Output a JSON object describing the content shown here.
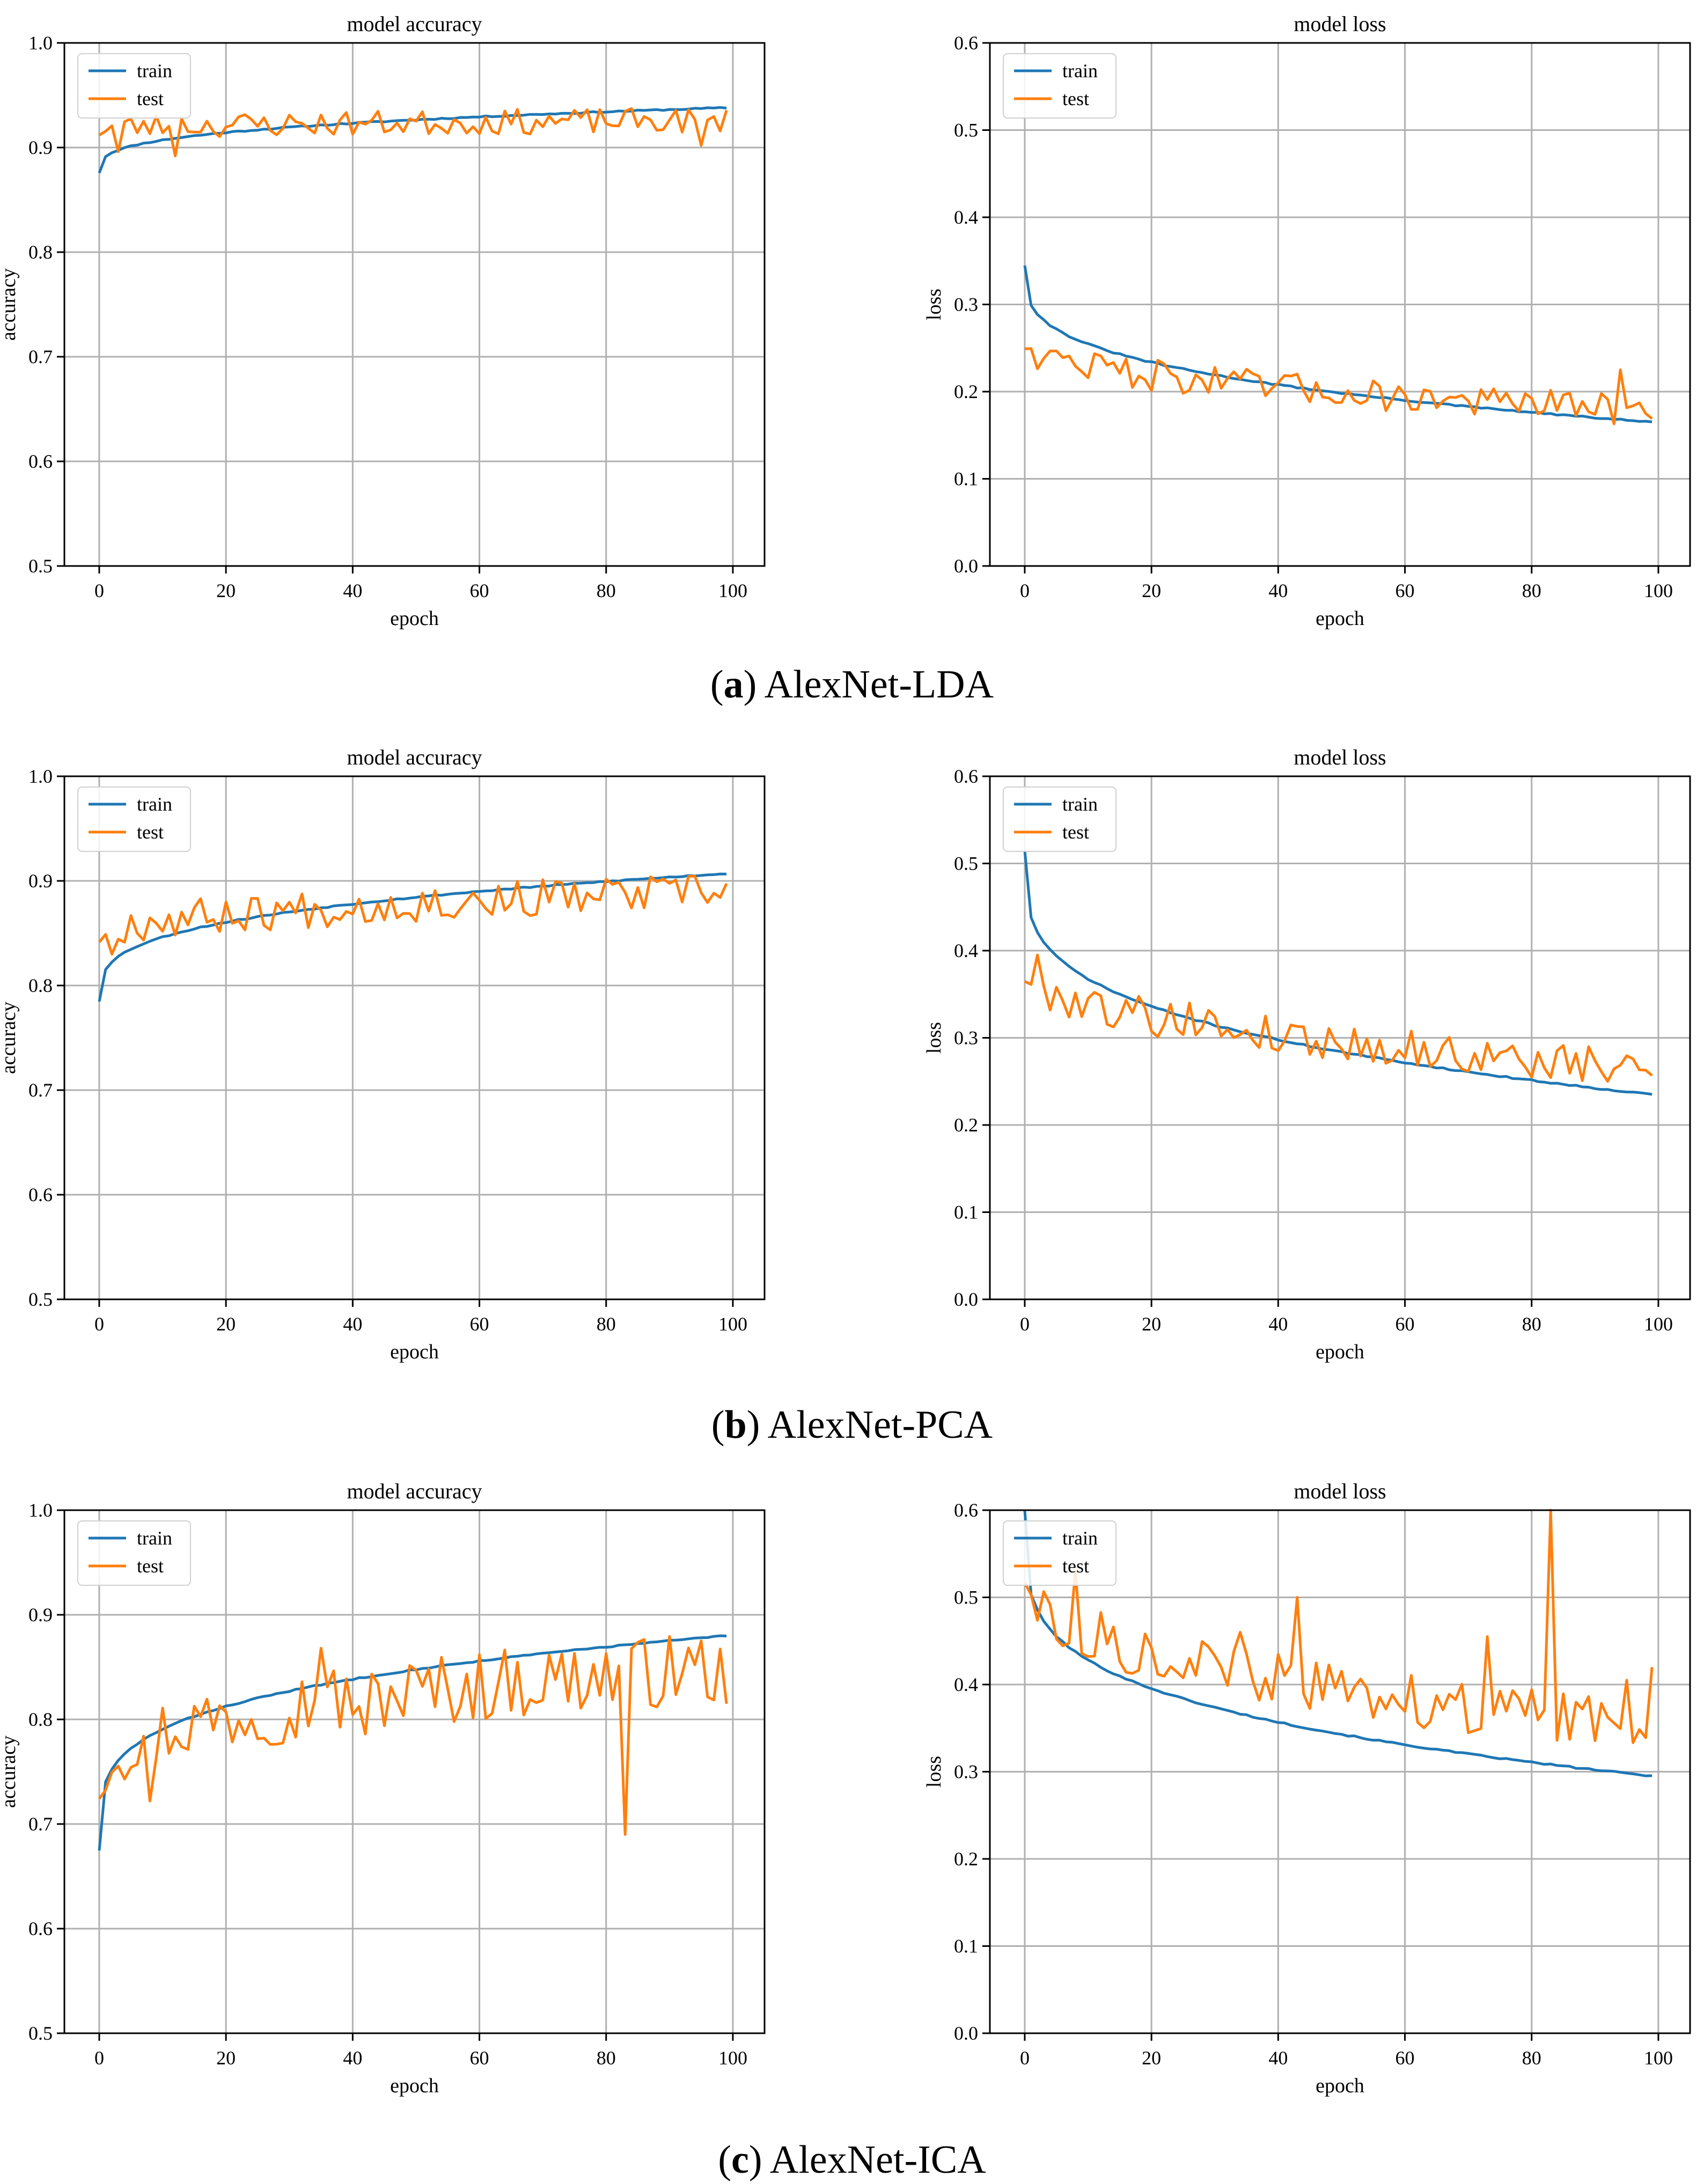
{
  "colors": {
    "train": "#1f77b4",
    "test": "#ff7f0e",
    "grid": "#b0b0b0",
    "axis": "#000000"
  },
  "captions": [
    {
      "letter": "a",
      "text": ") AlexNet-LDA",
      "open": "("
    },
    {
      "letter": "b",
      "text": ") AlexNet-PCA",
      "open": "("
    },
    {
      "letter": "c",
      "text": ") AlexNet-ICA",
      "open": "("
    }
  ],
  "chart_data": [
    {
      "type": "line",
      "title": "model accuracy",
      "xlabel": "epoch",
      "ylabel": "accuracy",
      "xlim": [
        0,
        100
      ],
      "ylim": [
        0.5,
        1.0
      ],
      "xticks": [
        "0",
        "20",
        "40",
        "60",
        "80",
        "100"
      ],
      "yticks": [
        "0.5",
        "0.6",
        "0.7",
        "0.8",
        "0.9",
        "1.0"
      ],
      "grid": true,
      "legend_position": "top-left",
      "series": [
        {
          "name": "train",
          "color": "#1f77b4",
          "shape": "sat",
          "start": 0.876,
          "end": 0.938,
          "power": 0.3,
          "noise": 0.0006,
          "seed": 11,
          "spikes": []
        },
        {
          "name": "test",
          "color": "#ff7f0e",
          "shape": "sat",
          "start": 0.918,
          "end": 0.926,
          "power": 0.5,
          "noise": 0.012,
          "seed": 23,
          "spikes": [
            [
              3,
              0.896
            ],
            [
              12,
              0.892
            ],
            [
              95,
              0.902
            ]
          ]
        }
      ]
    },
    {
      "type": "line",
      "title": "model loss",
      "xlabel": "epoch",
      "ylabel": "loss",
      "xlim": [
        0,
        100
      ],
      "ylim": [
        0.0,
        0.6
      ],
      "xticks": [
        "0",
        "20",
        "40",
        "60",
        "80",
        "100"
      ],
      "yticks": [
        "0.0",
        "0.1",
        "0.2",
        "0.3",
        "0.4",
        "0.5",
        "0.6"
      ],
      "grid": true,
      "legend_position": "top-left",
      "series": [
        {
          "name": "train",
          "color": "#1f77b4",
          "shape": "sat",
          "start": 0.345,
          "end": 0.165,
          "power": 0.3,
          "noise": 0.0008,
          "seed": 31,
          "spikes": []
        },
        {
          "name": "test",
          "color": "#ff7f0e",
          "shape": "sat",
          "start": 0.258,
          "end": 0.178,
          "power": 0.45,
          "noise": 0.018,
          "seed": 47,
          "spikes": [
            [
              12,
              0.241
            ],
            [
              94,
              0.225
            ]
          ]
        }
      ]
    },
    {
      "type": "line",
      "title": "model accuracy",
      "xlabel": "epoch",
      "ylabel": "accuracy",
      "xlim": [
        0,
        100
      ],
      "ylim": [
        0.5,
        1.0
      ],
      "xticks": [
        "0",
        "20",
        "40",
        "60",
        "80",
        "100"
      ],
      "yticks": [
        "0.5",
        "0.6",
        "0.7",
        "0.8",
        "0.9",
        "1.0"
      ],
      "grid": true,
      "legend_position": "top-left",
      "series": [
        {
          "name": "train",
          "color": "#1f77b4",
          "shape": "sat",
          "start": 0.785,
          "end": 0.907,
          "power": 0.3,
          "noise": 0.0006,
          "seed": 53,
          "spikes": []
        },
        {
          "name": "test",
          "color": "#ff7f0e",
          "shape": "sat",
          "start": 0.85,
          "end": 0.89,
          "power": 0.5,
          "noise": 0.018,
          "seed": 67,
          "spikes": [
            [
              2,
              0.83
            ]
          ]
        }
      ]
    },
    {
      "type": "line",
      "title": "model loss",
      "xlabel": "epoch",
      "ylabel": "loss",
      "xlim": [
        0,
        100
      ],
      "ylim": [
        0.0,
        0.6
      ],
      "xticks": [
        "0",
        "20",
        "40",
        "60",
        "80",
        "100"
      ],
      "yticks": [
        "0.0",
        "0.1",
        "0.2",
        "0.3",
        "0.4",
        "0.5",
        "0.6"
      ],
      "grid": true,
      "legend_position": "top-left",
      "series": [
        {
          "name": "train",
          "color": "#1f77b4",
          "shape": "sat",
          "start": 0.515,
          "end": 0.235,
          "power": 0.28,
          "noise": 0.0008,
          "seed": 71,
          "spikes": []
        },
        {
          "name": "test",
          "color": "#ff7f0e",
          "shape": "sat",
          "start": 0.375,
          "end": 0.262,
          "power": 0.5,
          "noise": 0.022,
          "seed": 79,
          "spikes": [
            [
              2,
              0.395
            ],
            [
              26,
              0.34
            ]
          ]
        }
      ]
    },
    {
      "type": "line",
      "title": "model accuracy",
      "xlabel": "epoch",
      "ylabel": "accuracy",
      "xlim": [
        0,
        100
      ],
      "ylim": [
        0.5,
        1.0
      ],
      "xticks": [
        "0",
        "20",
        "40",
        "60",
        "80",
        "100"
      ],
      "yticks": [
        "0.5",
        "0.6",
        "0.7",
        "0.8",
        "0.9",
        "1.0"
      ],
      "grid": true,
      "legend_position": "top-left",
      "series": [
        {
          "name": "train",
          "color": "#1f77b4",
          "shape": "sat",
          "start": 0.675,
          "end": 0.88,
          "power": 0.25,
          "noise": 0.0006,
          "seed": 83,
          "spikes": []
        },
        {
          "name": "test",
          "color": "#ff7f0e",
          "shape": "sat",
          "start": 0.74,
          "end": 0.85,
          "power": 0.35,
          "noise": 0.035,
          "seed": 97,
          "spikes": [
            [
              8,
              0.722
            ],
            [
              35,
              0.868
            ],
            [
              42,
              0.786
            ],
            [
              83,
              0.69
            ],
            [
              99,
              0.815
            ]
          ]
        }
      ]
    },
    {
      "type": "line",
      "title": "model loss",
      "xlabel": "epoch",
      "ylabel": "loss",
      "xlim": [
        0,
        100
      ],
      "ylim": [
        0.0,
        0.6
      ],
      "xticks": [
        "0",
        "20",
        "40",
        "60",
        "80",
        "100"
      ],
      "yticks": [
        "0.0",
        "0.1",
        "0.2",
        "0.3",
        "0.4",
        "0.5",
        "0.6"
      ],
      "grid": true,
      "legend_position": "top-left",
      "series": [
        {
          "name": "train",
          "color": "#1f77b4",
          "shape": "sat",
          "start": 0.6,
          "end": 0.295,
          "power": 0.25,
          "noise": 0.0008,
          "seed": 101,
          "spikes": []
        },
        {
          "name": "test",
          "color": "#ff7f0e",
          "shape": "sat",
          "start": 0.53,
          "end": 0.35,
          "power": 0.4,
          "noise": 0.03,
          "seed": 113,
          "spikes": [
            [
              8,
              0.53
            ],
            [
              26,
              0.43
            ],
            [
              34,
              0.46
            ],
            [
              43,
              0.5
            ],
            [
              73,
              0.455
            ],
            [
              83,
              0.6
            ],
            [
              95,
              0.405
            ],
            [
              99,
              0.42
            ]
          ]
        }
      ]
    }
  ]
}
